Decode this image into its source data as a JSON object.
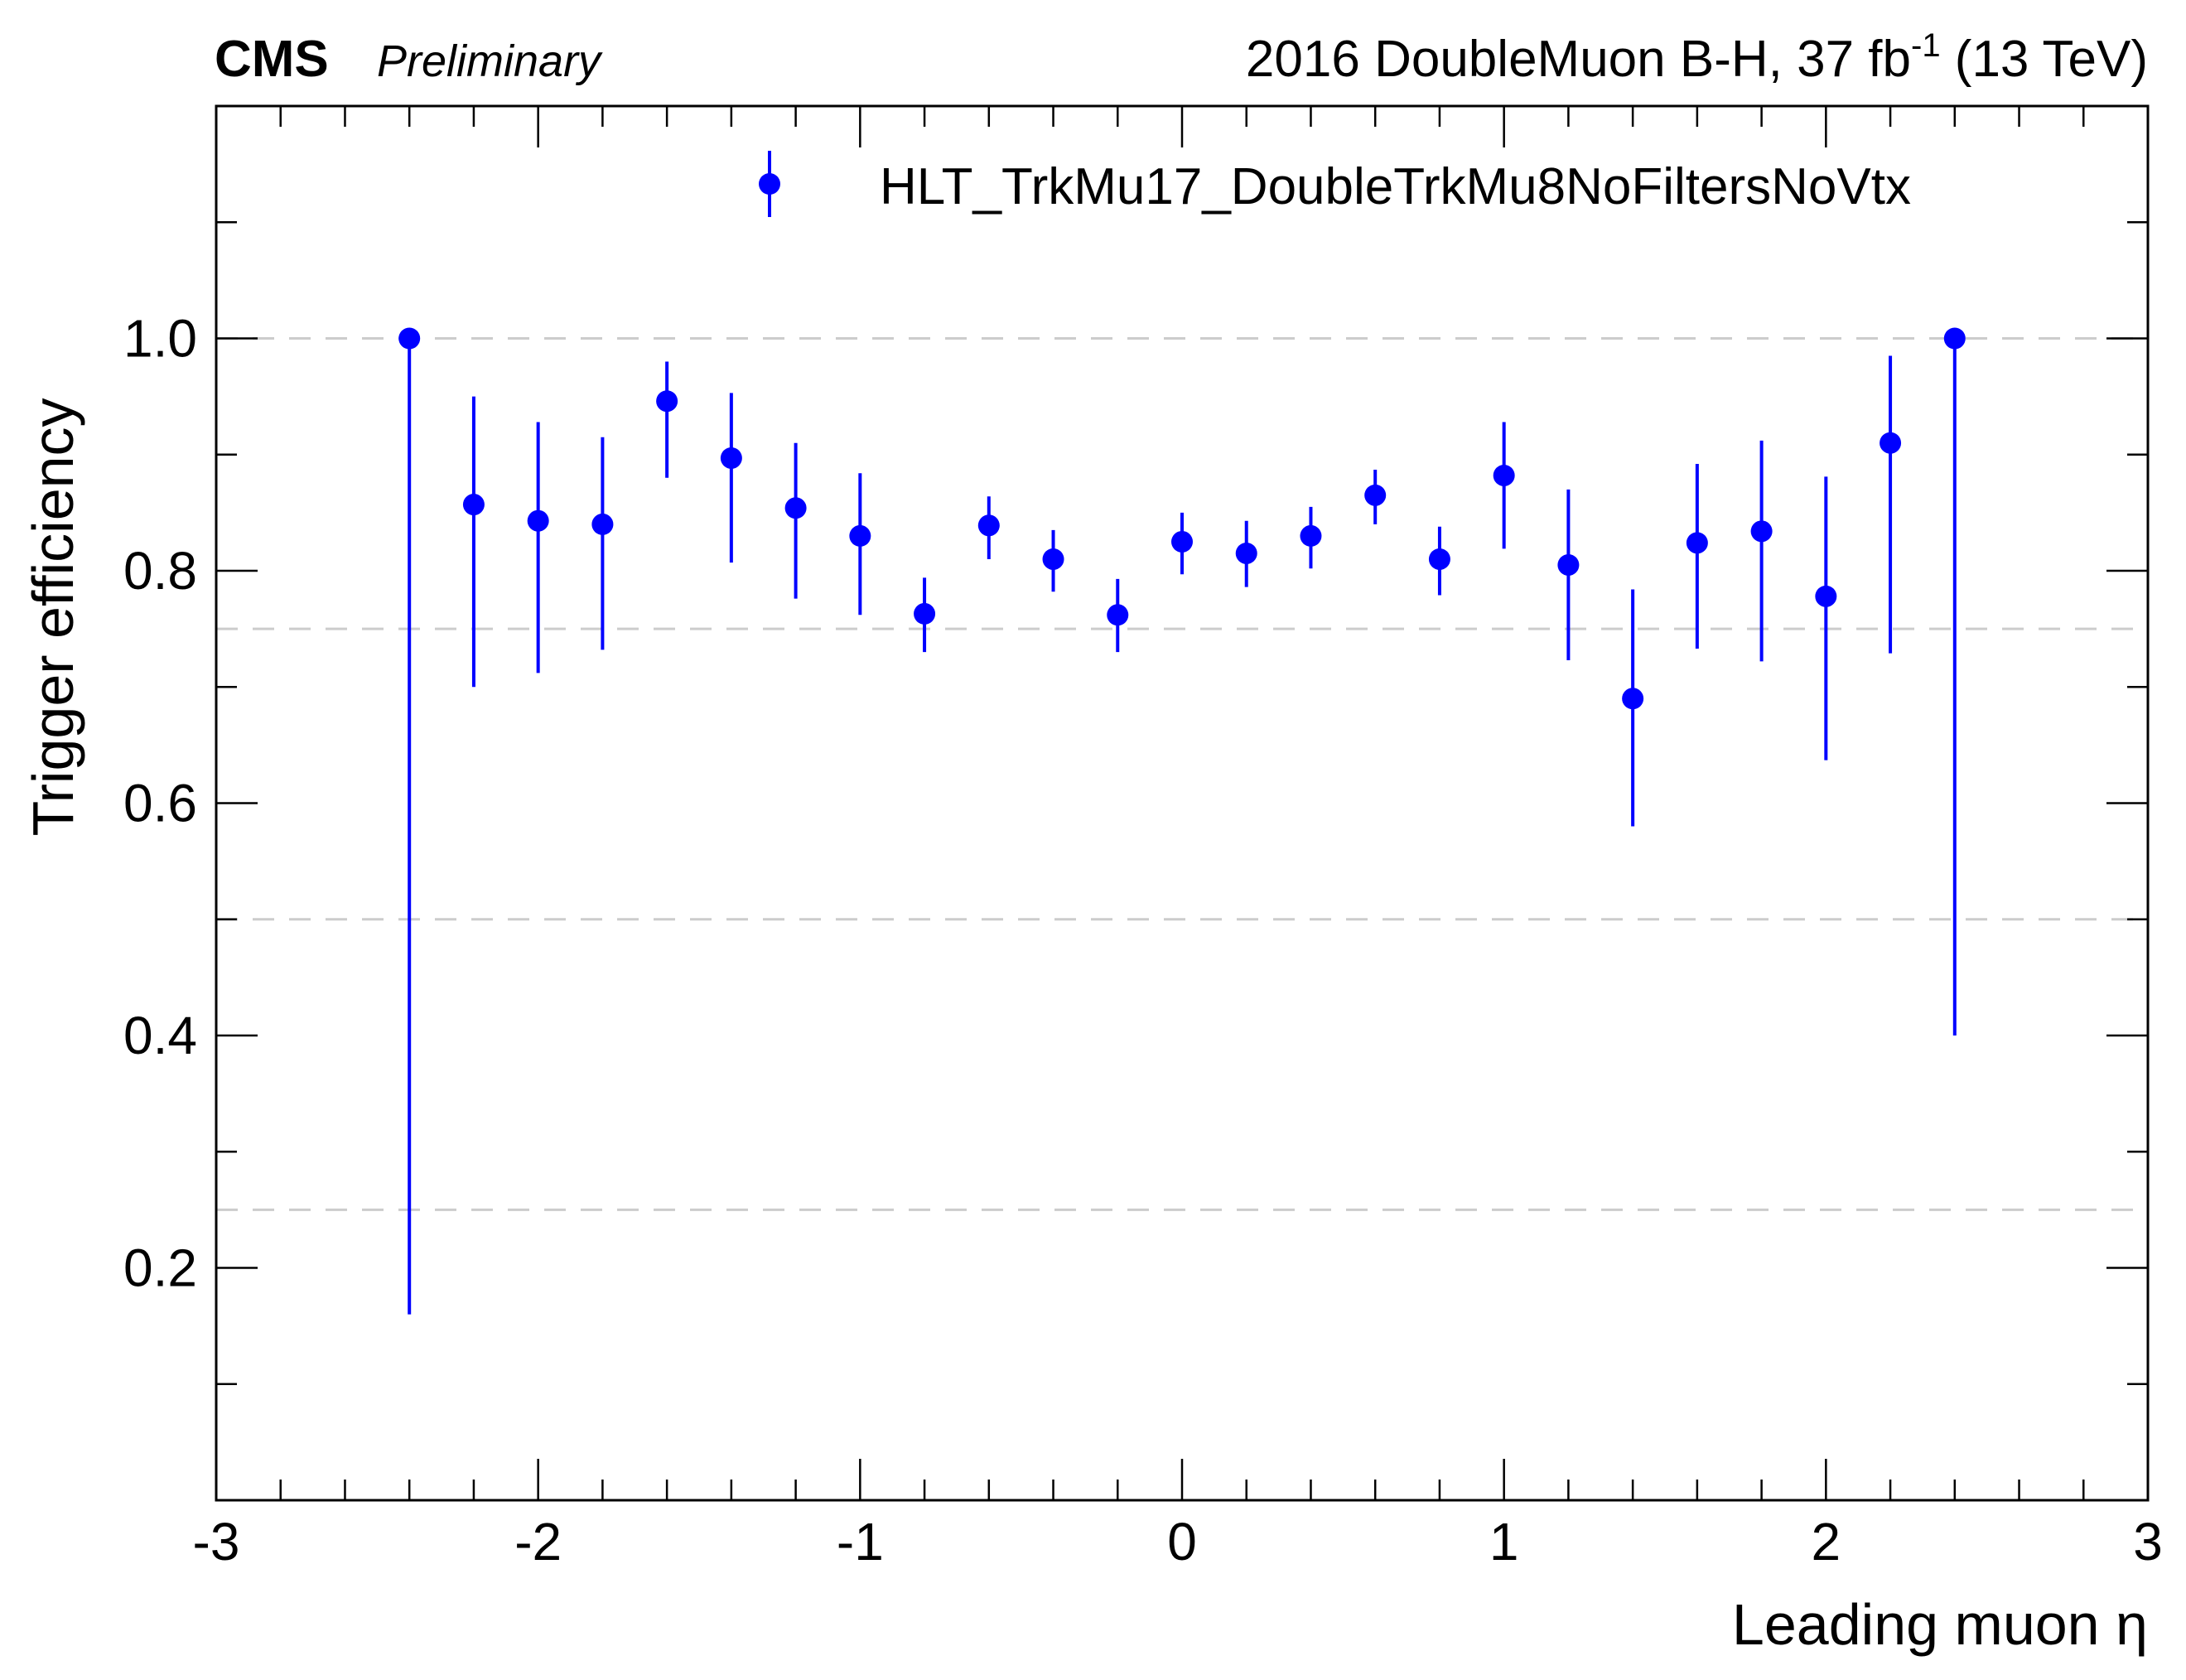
{
  "header": {
    "experiment": "CMS",
    "status": "Preliminary",
    "lumi_prefix": "2016 DoubleMuon B-H, 37 fb",
    "lumi_exp": "-1",
    "lumi_suffix": " (13 TeV)"
  },
  "colors": {
    "marker": "#0000ff",
    "grid": "#cccccc",
    "axis": "#000000"
  },
  "chart_data": {
    "type": "scatter",
    "xlabel": "Leading muon η",
    "ylabel": "Trigger efficiency",
    "xlim": [
      -3,
      3
    ],
    "ylim": [
      0,
      1.2
    ],
    "xticks": [
      "-3",
      "-2",
      "-1",
      "0",
      "1",
      "2",
      "3"
    ],
    "yticks": [
      "0.2",
      "0.4",
      "0.6",
      "0.8",
      "1.0"
    ],
    "grid_lines_y": [
      0.25,
      0.5,
      0.75,
      1.0
    ],
    "legend_position": "top-right",
    "series": [
      {
        "name": "HLT_TrkMu17_DoubleTrkMu8NoFiltersNoVtx",
        "x": [
          -2.4,
          -2.2,
          -2.0,
          -1.8,
          -1.6,
          -1.4,
          -1.2,
          -1.0,
          -0.8,
          -0.6,
          -0.4,
          -0.2,
          0.0,
          0.2,
          0.4,
          0.6,
          0.8,
          1.0,
          1.2,
          1.4,
          1.6,
          1.8,
          2.0,
          2.2,
          2.4
        ],
        "y": [
          1.0,
          0.857,
          0.843,
          0.84,
          0.946,
          0.897,
          0.854,
          0.83,
          0.763,
          0.839,
          0.81,
          0.762,
          0.825,
          0.815,
          0.83,
          0.865,
          0.81,
          0.882,
          0.805,
          0.69,
          0.824,
          0.834,
          0.778,
          0.91,
          1.0
        ],
        "y_low": [
          0.16,
          0.7,
          0.712,
          0.732,
          0.88,
          0.807,
          0.776,
          0.762,
          0.73,
          0.81,
          0.782,
          0.73,
          0.797,
          0.786,
          0.802,
          0.84,
          0.779,
          0.819,
          0.723,
          0.58,
          0.733,
          0.722,
          0.637,
          0.729,
          0.4
        ],
        "y_high": [
          1.0,
          0.95,
          0.928,
          0.915,
          0.98,
          0.953,
          0.91,
          0.884,
          0.794,
          0.864,
          0.835,
          0.793,
          0.85,
          0.843,
          0.855,
          0.887,
          0.838,
          0.928,
          0.87,
          0.784,
          0.892,
          0.912,
          0.881,
          0.985,
          1.0
        ]
      }
    ]
  }
}
